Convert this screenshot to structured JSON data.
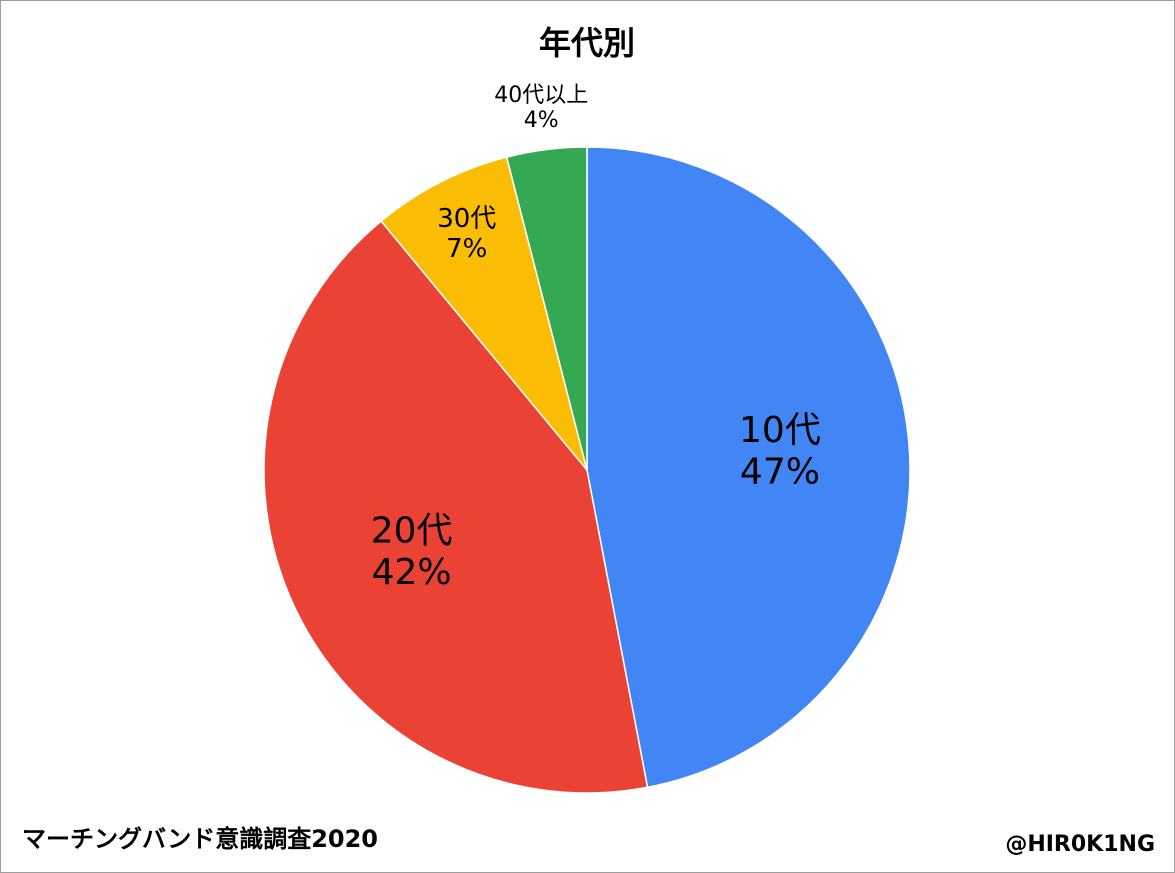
{
  "chart_data": {
    "type": "pie",
    "title": "年代別",
    "categories": [
      "10代",
      "20代",
      "30代",
      "40代以上"
    ],
    "values": [
      47,
      42,
      7,
      4
    ],
    "value_labels": [
      "47%",
      "42%",
      "7%",
      "4%"
    ],
    "colors": [
      "#4285f4",
      "#ea4335",
      "#fbbc04",
      "#34a853"
    ],
    "footer_left": "マーチングバンド意識調査2020",
    "footer_right": "@HIR0K1NG"
  }
}
